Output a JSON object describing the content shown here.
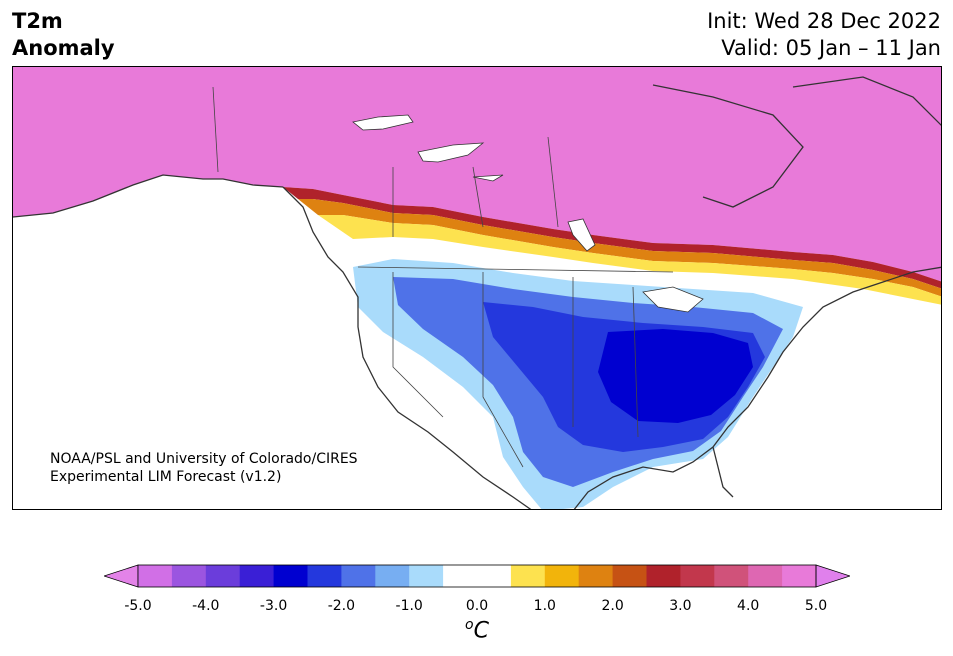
{
  "header": {
    "title_line1": "T2m",
    "title_line2": "Anomaly",
    "init": "Init: Wed 28 Dec 2022",
    "valid": "Valid: 05 Jan – 11 Jan"
  },
  "credit": {
    "line1": "NOAA/PSL and University of Colorado/CIRES",
    "line2": "Experimental LIM Forecast (v1.2)"
  },
  "colorbar": {
    "unit_symbol": "C",
    "unit_prefix": "o",
    "tick_labels": [
      "-5.0",
      "-4.0",
      "-3.0",
      "-2.0",
      "-1.0",
      "0.0",
      "1.0",
      "2.0",
      "3.0",
      "4.0",
      "5.0"
    ],
    "colors": [
      "#d16fe6",
      "#9b55e0",
      "#6b3ddb",
      "#3a1fd6",
      "#0000d0",
      "#2438dd",
      "#4f72e8",
      "#77aef2",
      "#a9dbfb",
      "#ffffff",
      "#ffffff",
      "#fde24f",
      "#f2b40b",
      "#de8211",
      "#c65214",
      "#b0222b",
      "#c2374c",
      "#d0527a",
      "#de67b2",
      "#e87ad9"
    ],
    "under_color": "#e383e8",
    "over_color": "#e080ec"
  },
  "legend_colors": {
    "warm_max": "#e87ad9",
    "cold_max": "#0000d0",
    "land": "#ffffff",
    "coast": "#333333"
  }
}
